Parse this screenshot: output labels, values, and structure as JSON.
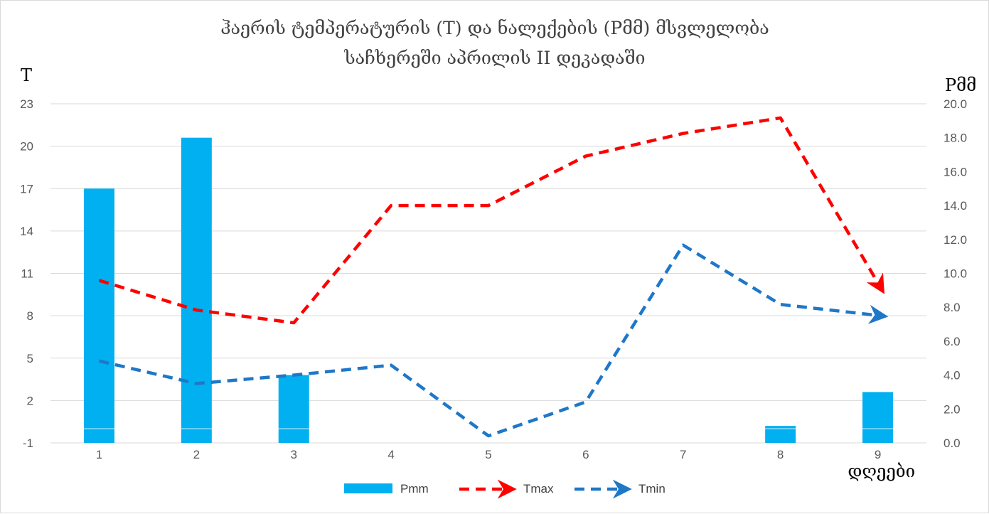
{
  "chart_data": {
    "type": "bar+line",
    "title": "ჰაერის ტემპერატურის (T) და ნალექების (Pმმ) მსვლელობა",
    "subtitle": "საჩხერეში აპრილის II დეკადაში",
    "ylabel_left": "T",
    "ylabel_right": "Pმმ",
    "xlabel": "დღეები",
    "categories": [
      "1",
      "2",
      "3",
      "4",
      "5",
      "6",
      "7",
      "8",
      "9"
    ],
    "y_left": {
      "min": -1,
      "max": 23,
      "ticks": [
        "23",
        "20",
        "17",
        "14",
        "11",
        "8",
        "5",
        "2",
        "-1"
      ]
    },
    "y_right": {
      "min": 0,
      "max": 20,
      "ticks": [
        "20.0",
        "18.0",
        "16.0",
        "14.0",
        "12.0",
        "10.0",
        "8.0",
        "6.0",
        "4.0",
        "2.0",
        "0.0"
      ]
    },
    "grid": true,
    "legend_position": "bottom",
    "series": [
      {
        "name": "Pmm",
        "kind": "bar",
        "axis": "right",
        "color": "#00b0f0",
        "values": [
          15.0,
          18.0,
          4.0,
          0,
          0,
          0,
          0,
          1.0,
          3.0
        ]
      },
      {
        "name": "Tmax",
        "kind": "line",
        "axis": "left",
        "color": "#ff0000",
        "dashed": true,
        "end_arrow": true,
        "values": [
          10.5,
          8.4,
          7.5,
          15.8,
          15.8,
          19.3,
          20.9,
          22.0,
          10.0
        ]
      },
      {
        "name": "Tmin",
        "kind": "line",
        "axis": "left",
        "color": "#1f77c8",
        "dashed": true,
        "end_arrow": true,
        "values": [
          4.8,
          3.2,
          3.8,
          4.5,
          -0.5,
          1.9,
          13.0,
          8.8,
          8.0
        ]
      }
    ]
  }
}
